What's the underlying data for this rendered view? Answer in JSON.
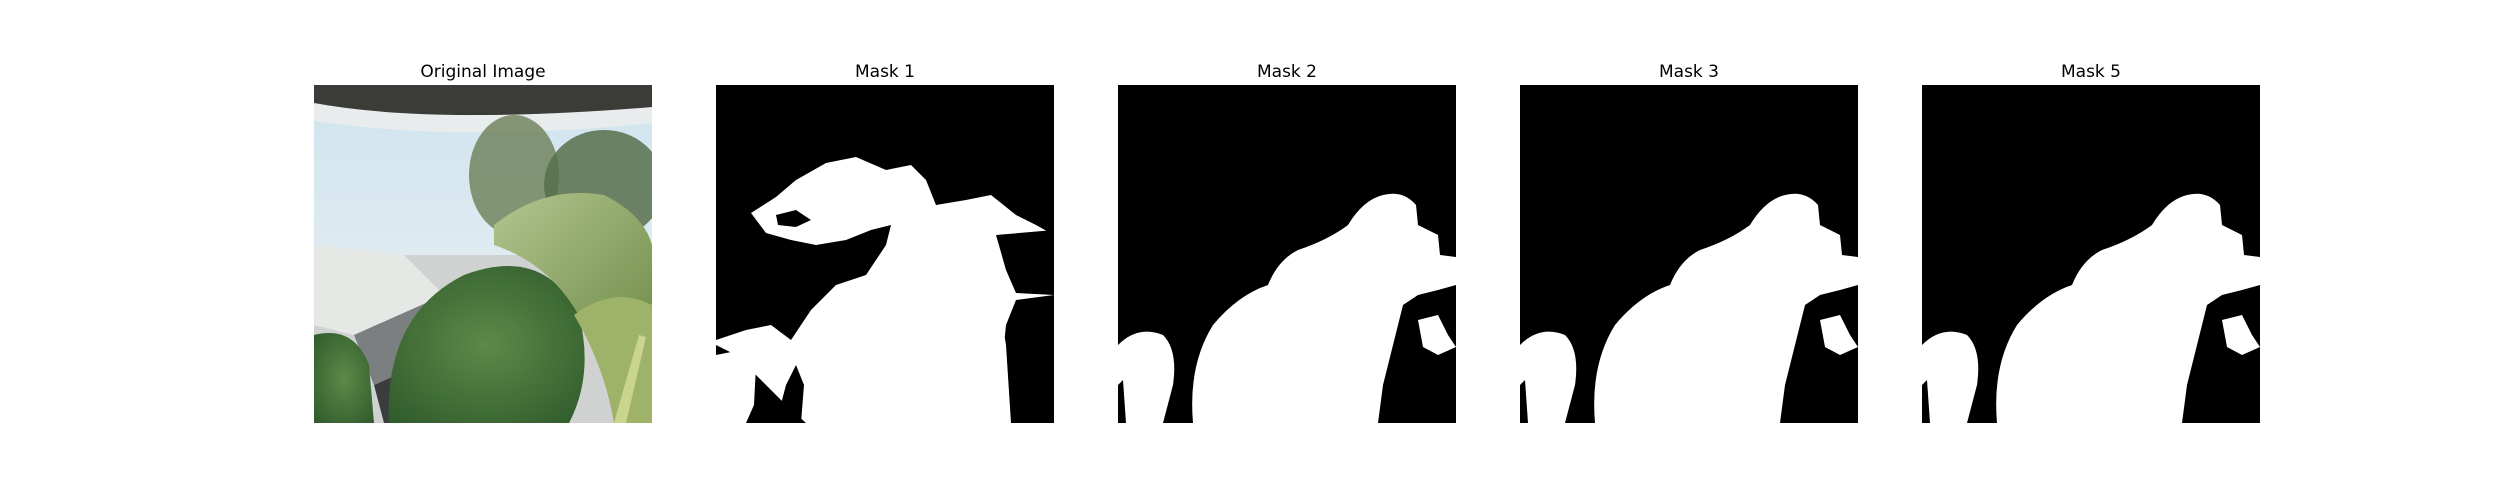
{
  "panels": [
    {
      "title": "Original Image"
    },
    {
      "title": "Mask 1"
    },
    {
      "title": "Mask 2"
    },
    {
      "title": "Mask 3"
    },
    {
      "title": "Mask 5"
    }
  ],
  "colors": {
    "background": "#ffffff",
    "mask_foreground": "#ffffff",
    "mask_background": "#000000",
    "sky": "#d9e7ee",
    "leaf_dark": "#3f6a36",
    "leaf_light": "#8fa86a",
    "trees": "#5c7448"
  }
}
